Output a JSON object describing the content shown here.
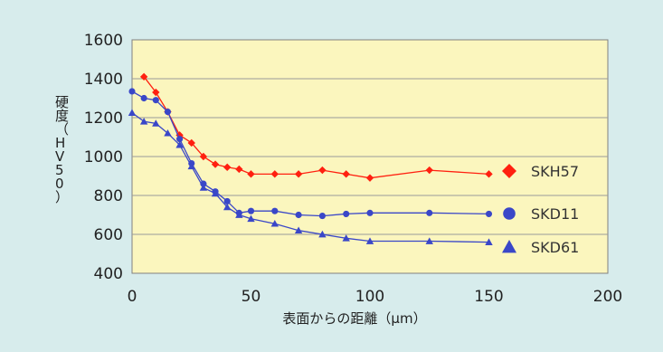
{
  "chart_data": {
    "type": "line",
    "title": "",
    "xlabel": "表面からの距離（μm）",
    "ylabel": "硬度（HV50）",
    "xlim": [
      0,
      200
    ],
    "ylim": [
      400,
      1600
    ],
    "x_ticks": [
      "0",
      "50",
      "100",
      "150",
      "200"
    ],
    "y_ticks": [
      "400",
      "600",
      "800",
      "1000",
      "1200",
      "1400",
      "1600"
    ],
    "grid": "horizontal",
    "legend": "right",
    "series": [
      {
        "name": "SKH57",
        "color": "#ff2010",
        "marker": "diamond",
        "points": [
          [
            5,
            1410
          ],
          [
            10,
            1330
          ],
          [
            15,
            1230
          ],
          [
            20,
            1110
          ],
          [
            25,
            1070
          ],
          [
            30,
            1000
          ],
          [
            35,
            960
          ],
          [
            40,
            945
          ],
          [
            45,
            935
          ],
          [
            50,
            910
          ],
          [
            60,
            910
          ],
          [
            70,
            910
          ],
          [
            80,
            930
          ],
          [
            90,
            910
          ],
          [
            100,
            890
          ],
          [
            125,
            930
          ],
          [
            150,
            910
          ]
        ]
      },
      {
        "name": "SKD11",
        "color": "#3a47c8",
        "marker": "circle",
        "points": [
          [
            0,
            1335
          ],
          [
            5,
            1300
          ],
          [
            10,
            1290
          ],
          [
            15,
            1230
          ],
          [
            20,
            1090
          ],
          [
            25,
            965
          ],
          [
            30,
            860
          ],
          [
            35,
            820
          ],
          [
            40,
            770
          ],
          [
            45,
            710
          ],
          [
            50,
            720
          ],
          [
            60,
            720
          ],
          [
            70,
            700
          ],
          [
            80,
            695
          ],
          [
            90,
            705
          ],
          [
            100,
            710
          ],
          [
            125,
            710
          ],
          [
            150,
            705
          ]
        ]
      },
      {
        "name": "SKD61",
        "color": "#3a47c8",
        "marker": "triangle",
        "points": [
          [
            0,
            1225
          ],
          [
            5,
            1180
          ],
          [
            10,
            1170
          ],
          [
            15,
            1120
          ],
          [
            20,
            1060
          ],
          [
            25,
            950
          ],
          [
            30,
            840
          ],
          [
            35,
            810
          ],
          [
            40,
            740
          ],
          [
            45,
            700
          ],
          [
            50,
            680
          ],
          [
            60,
            655
          ],
          [
            70,
            620
          ],
          [
            80,
            600
          ],
          [
            90,
            580
          ],
          [
            100,
            565
          ],
          [
            125,
            565
          ],
          [
            150,
            560
          ]
        ]
      }
    ]
  }
}
